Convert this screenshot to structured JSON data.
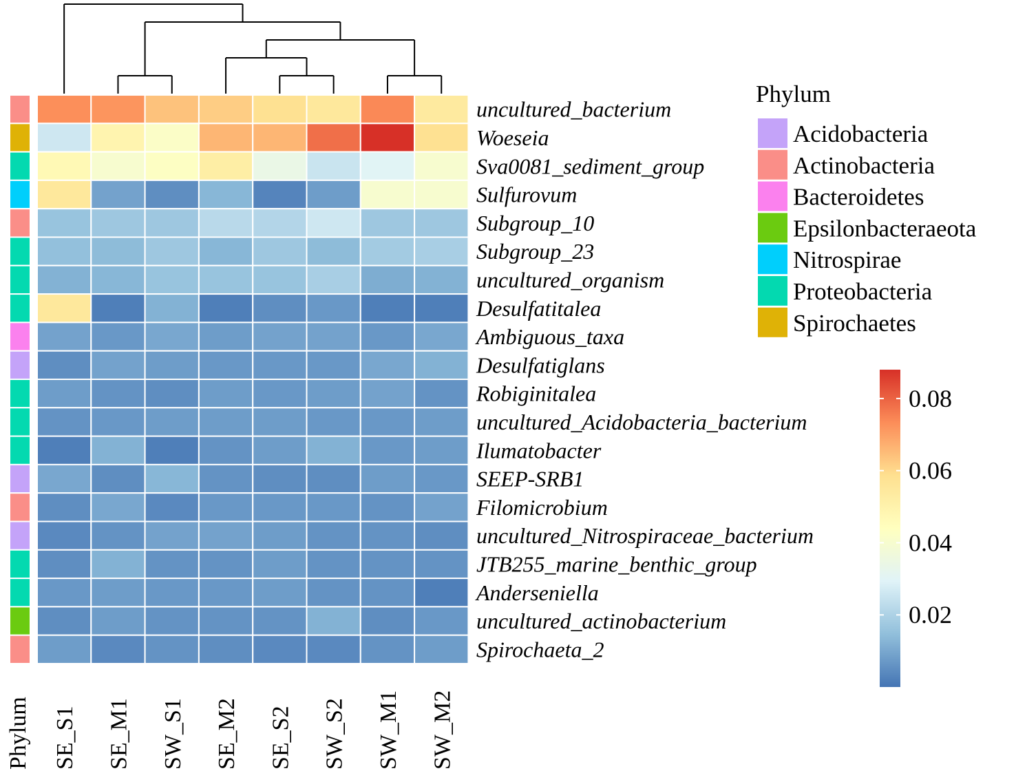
{
  "chart_data": {
    "type": "heatmap",
    "columns": [
      "SE_S1",
      "SE_M1",
      "SW_S1",
      "SE_M2",
      "SE_S2",
      "SW_S2",
      "SW_M1",
      "SW_M2"
    ],
    "rows": [
      {
        "name": "uncultured_bacterium",
        "phylum": "Actinobacteria",
        "values": [
          0.073,
          0.072,
          0.064,
          0.062,
          0.058,
          0.055,
          0.074,
          0.054
        ]
      },
      {
        "name": "Woeseia",
        "phylum": "Spirochaetes",
        "values": [
          0.026,
          0.049,
          0.042,
          0.066,
          0.066,
          0.078,
          0.088,
          0.058
        ]
      },
      {
        "name": "Sva0081_sediment_group",
        "phylum": "Proteobacteria",
        "values": [
          0.047,
          0.04,
          0.043,
          0.052,
          0.034,
          0.025,
          0.03,
          0.04
        ]
      },
      {
        "name": "Sulfurovum",
        "phylum": "Nitrospirae",
        "values": [
          0.055,
          0.009,
          0.005,
          0.013,
          0.003,
          0.008,
          0.04,
          0.04
        ]
      },
      {
        "name": "Subgroup_10",
        "phylum": "Actinobacteria",
        "values": [
          0.016,
          0.017,
          0.017,
          0.022,
          0.021,
          0.026,
          0.017,
          0.017
        ]
      },
      {
        "name": "Subgroup_23",
        "phylum": "Proteobacteria",
        "values": [
          0.015,
          0.014,
          0.017,
          0.013,
          0.017,
          0.014,
          0.018,
          0.019
        ]
      },
      {
        "name": "uncultured_organism",
        "phylum": "Proteobacteria",
        "values": [
          0.012,
          0.013,
          0.016,
          0.016,
          0.016,
          0.019,
          0.011,
          0.012
        ]
      },
      {
        "name": "Desulfatitalea",
        "phylum": "Proteobacteria",
        "values": [
          0.055,
          0.002,
          0.012,
          0.002,
          0.005,
          0.007,
          0.002,
          0.002
        ]
      },
      {
        "name": "Ambiguous_taxa",
        "phylum": "Bacteroidetes",
        "values": [
          0.009,
          0.007,
          0.01,
          0.008,
          0.009,
          0.009,
          0.007,
          0.01
        ]
      },
      {
        "name": "Desulfatiglans",
        "phylum": "Acidobacteria",
        "values": [
          0.005,
          0.009,
          0.008,
          0.007,
          0.007,
          0.007,
          0.01,
          0.012
        ]
      },
      {
        "name": "Robiginitalea",
        "phylum": "Proteobacteria",
        "values": [
          0.008,
          0.006,
          0.005,
          0.008,
          0.007,
          0.008,
          0.009,
          0.006
        ]
      },
      {
        "name": "uncultured_Acidobacteria_bacterium",
        "phylum": "Proteobacteria",
        "values": [
          0.006,
          0.007,
          0.008,
          0.008,
          0.008,
          0.007,
          0.007,
          0.008
        ]
      },
      {
        "name": "Ilumatobacter",
        "phylum": "Proteobacteria",
        "values": [
          0.002,
          0.012,
          0.002,
          0.006,
          0.008,
          0.012,
          0.007,
          0.008
        ]
      },
      {
        "name": "SEEP-SRB1",
        "phylum": "Acidobacteria",
        "values": [
          0.01,
          0.005,
          0.013,
          0.006,
          0.005,
          0.005,
          0.008,
          0.007
        ]
      },
      {
        "name": "Filomicrobium",
        "phylum": "Actinobacteria",
        "values": [
          0.005,
          0.01,
          0.004,
          0.007,
          0.007,
          0.007,
          0.006,
          0.009
        ]
      },
      {
        "name": "uncultured_Nitrospiraceae_bacterium",
        "phylum": "Acidobacteria",
        "values": [
          0.004,
          0.006,
          0.009,
          0.009,
          0.008,
          0.006,
          0.006,
          0.005
        ]
      },
      {
        "name": "JTB255_marine_benthic_group",
        "phylum": "Proteobacteria",
        "values": [
          0.005,
          0.012,
          0.006,
          0.006,
          0.008,
          0.006,
          0.006,
          0.006
        ]
      },
      {
        "name": "Anderseniella",
        "phylum": "Proteobacteria",
        "values": [
          0.007,
          0.008,
          0.007,
          0.007,
          0.008,
          0.006,
          0.006,
          0.002
        ]
      },
      {
        "name": "uncultured_actinobacterium",
        "phylum": "Epsilonbacteraeota",
        "values": [
          0.005,
          0.008,
          0.006,
          0.006,
          0.006,
          0.012,
          0.005,
          0.007
        ]
      },
      {
        "name": "Spirochaeta_2",
        "phylum": "Actinobacteria",
        "values": [
          0.008,
          0.004,
          0.006,
          0.005,
          0.004,
          0.004,
          0.006,
          0.008
        ]
      }
    ],
    "annotation_label": "Phylum",
    "legend": {
      "title": "Phylum",
      "position": "right",
      "entries": [
        {
          "label": "Acidobacteria",
          "color": "#C4A3F9"
        },
        {
          "label": "Actinobacteria",
          "color": "#FA8E88"
        },
        {
          "label": "Bacteroidetes",
          "color": "#FB81EE"
        },
        {
          "label": "Epsilonbacteraeota",
          "color": "#6BCB10"
        },
        {
          "label": "Nitrospirae",
          "color": "#00CFFC"
        },
        {
          "label": "Proteobacteria",
          "color": "#03D9B0"
        },
        {
          "label": "Spirochaetes",
          "color": "#DFB206"
        }
      ]
    },
    "colorbar": {
      "range": [
        0,
        0.088
      ],
      "ticks": [
        {
          "value": 0.02,
          "label": "0.02"
        },
        {
          "value": 0.04,
          "label": "0.04"
        },
        {
          "value": 0.06,
          "label": "0.06"
        },
        {
          "value": 0.08,
          "label": "0.08"
        }
      ],
      "colors": [
        "#4575B4",
        "#91BFDB",
        "#E0F3F8",
        "#FFFFBF",
        "#FEE090",
        "#FC8D59",
        "#D73027"
      ]
    },
    "column_dendrogram": "(SE_S1,((SE_M1,SW_S1),((SE_M2,(SE_S2,SW_S2)),(SW_M1,SW_M2))))"
  }
}
